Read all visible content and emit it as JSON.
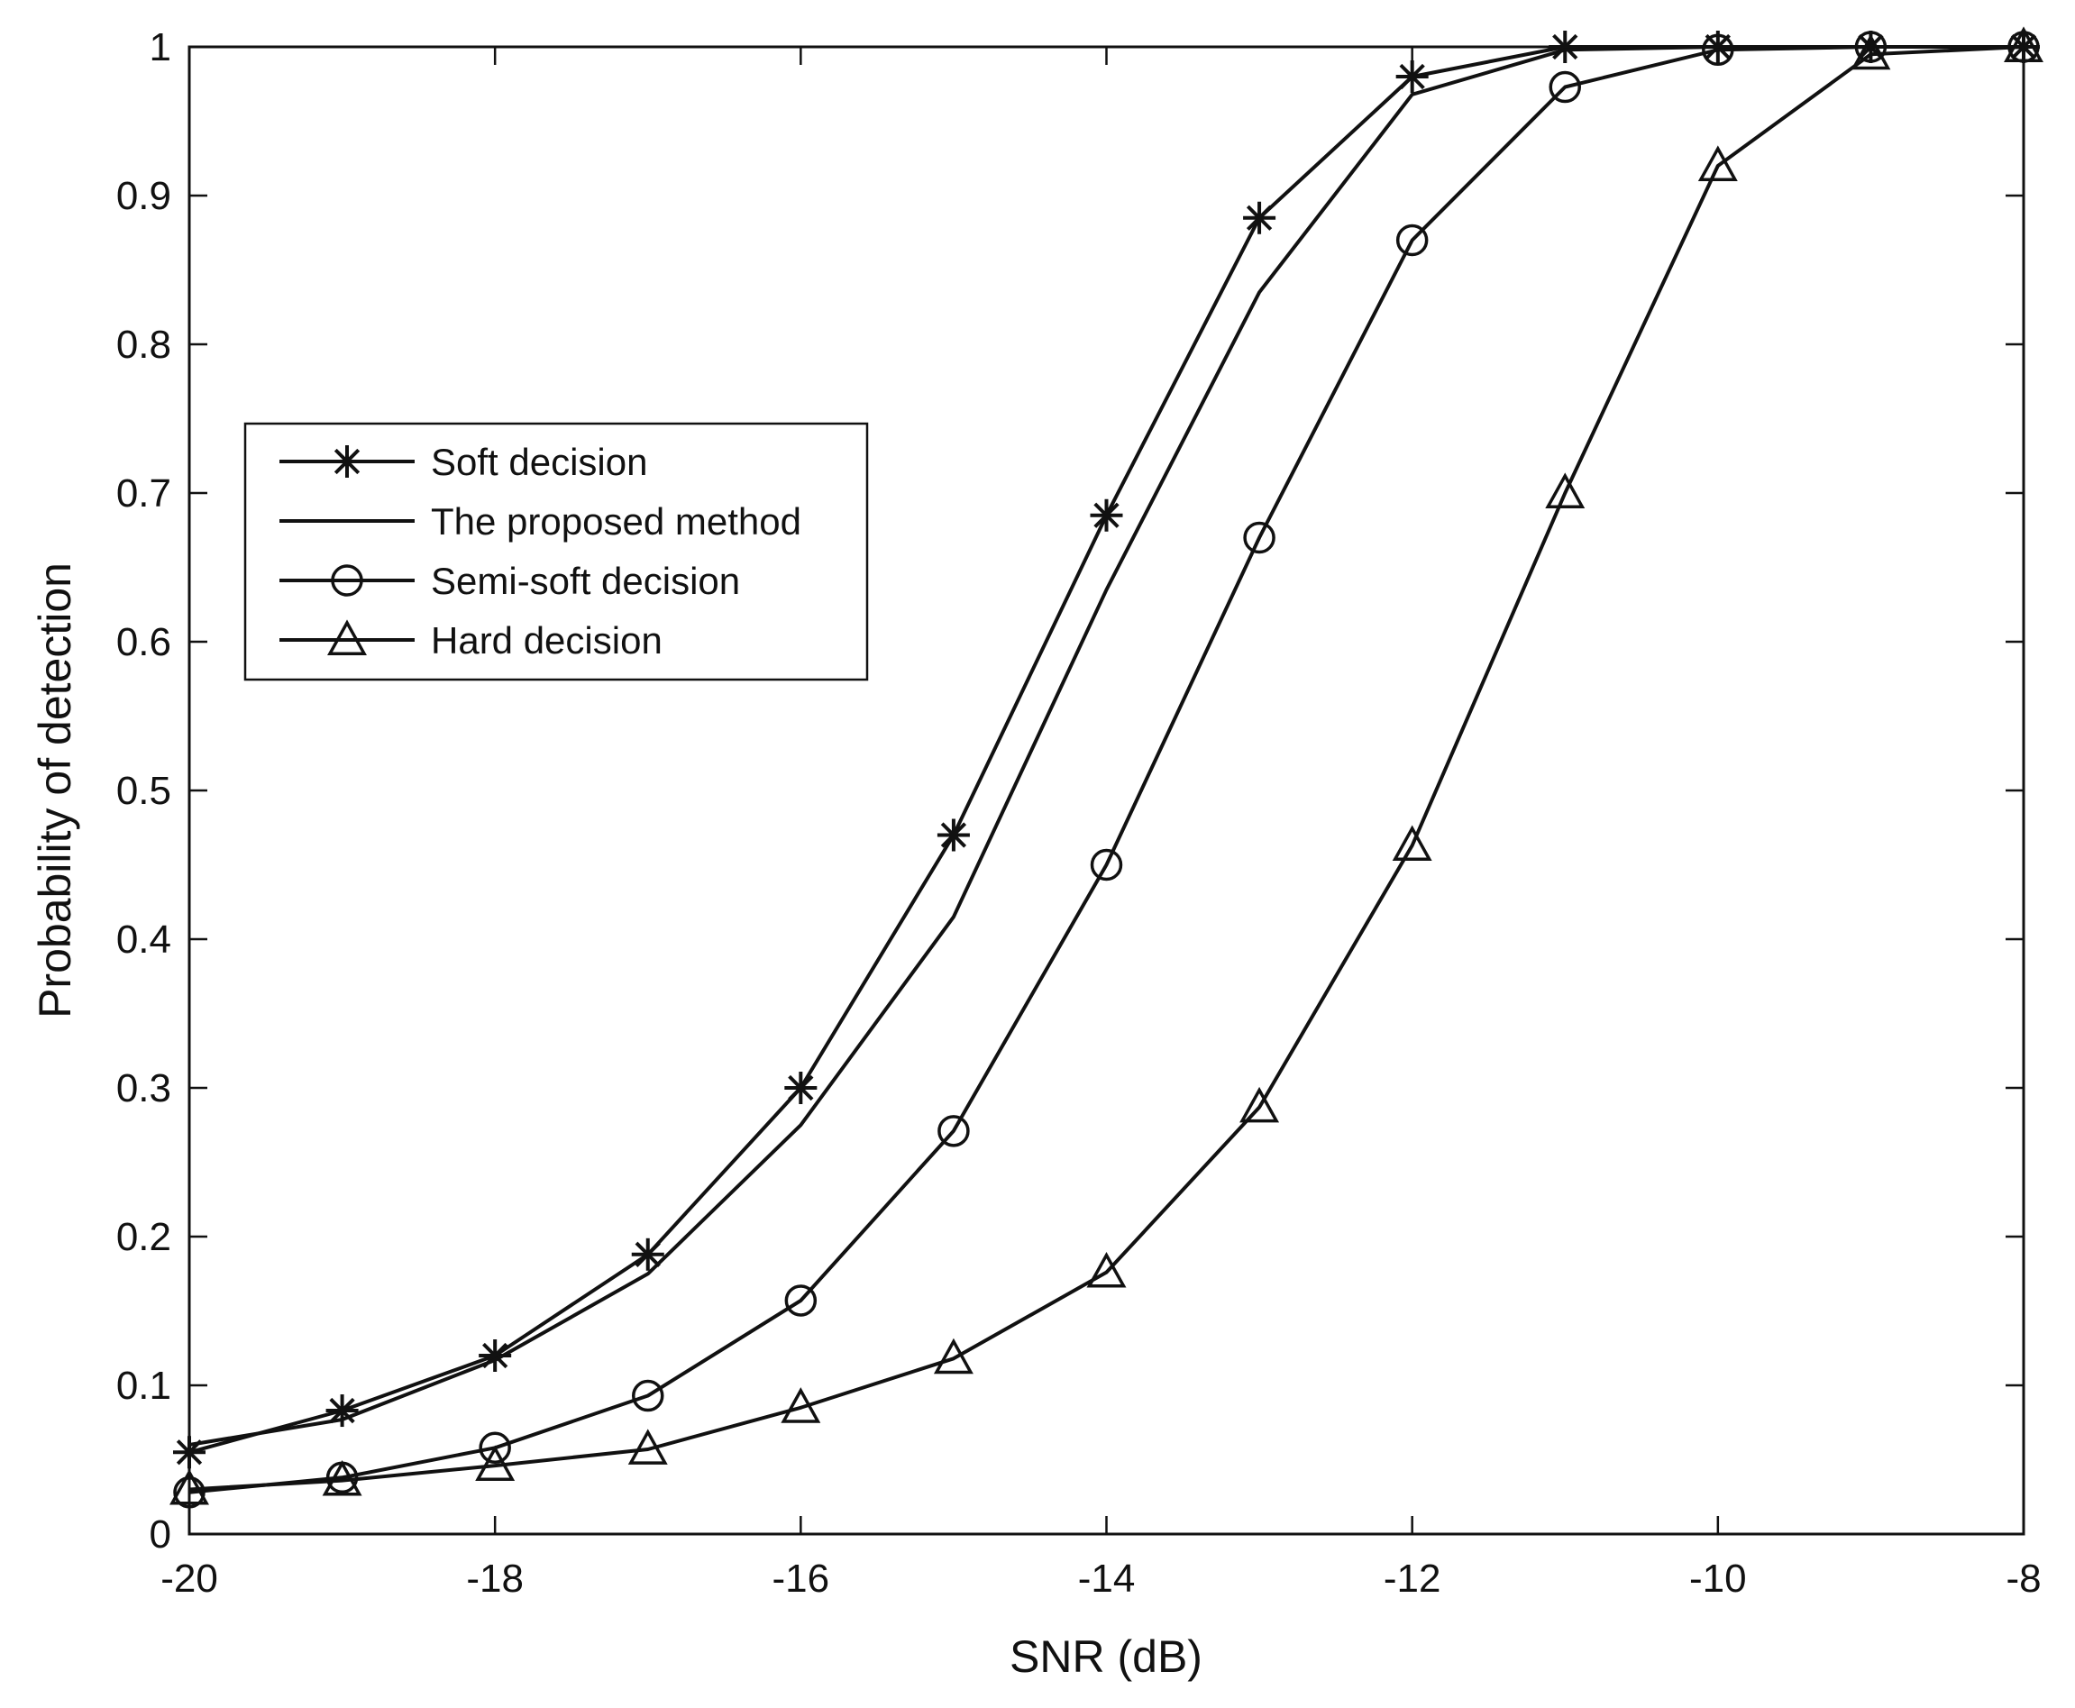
{
  "chart_data": {
    "type": "line",
    "title": "",
    "xlabel": "SNR (dB)",
    "ylabel": "Probability of detection",
    "xlim": [
      -20,
      -8
    ],
    "ylim": [
      0,
      1
    ],
    "xticks": [
      -20,
      -18,
      -16,
      -14,
      -12,
      -10,
      -8
    ],
    "xtick_labels": [
      "-20",
      "-18",
      "-16",
      "-14",
      "-12",
      "-10",
      "-8"
    ],
    "yticks": [
      0,
      0.1,
      0.2,
      0.3,
      0.4,
      0.5,
      0.6,
      0.7,
      0.8,
      0.9,
      1
    ],
    "ytick_labels": [
      "0",
      "0.1",
      "0.2",
      "0.3",
      "0.4",
      "0.5",
      "0.6",
      "0.7",
      "0.8",
      "0.9",
      "1"
    ],
    "grid": false,
    "legend_position": "left",
    "x": [
      -20,
      -19,
      -18,
      -17,
      -16,
      -15,
      -14,
      -13,
      -12,
      -11,
      -10,
      -9,
      -8
    ],
    "series": [
      {
        "name": "Soft decision",
        "marker": "asterisk",
        "values": [
          0.055,
          0.083,
          0.12,
          0.188,
          0.3,
          0.47,
          0.685,
          0.885,
          0.98,
          1.0,
          1.0,
          1.0,
          1.0
        ]
      },
      {
        "name": "The proposed method",
        "marker": "none",
        "values": [
          0.06,
          0.077,
          0.117,
          0.175,
          0.275,
          0.415,
          0.635,
          0.835,
          0.968,
          0.998,
          1.0,
          1.0,
          1.0
        ]
      },
      {
        "name": "Semi-soft decision",
        "marker": "circle",
        "values": [
          0.028,
          0.038,
          0.058,
          0.093,
          0.157,
          0.271,
          0.45,
          0.67,
          0.87,
          0.973,
          0.998,
          1.0,
          1.0
        ]
      },
      {
        "name": "Hard decision",
        "marker": "triangle",
        "values": [
          0.03,
          0.036,
          0.046,
          0.057,
          0.085,
          0.118,
          0.176,
          0.287,
          0.463,
          0.7,
          0.92,
          0.995,
          1.0
        ]
      }
    ],
    "colors": {
      "line": "#111111",
      "axes": "#111111",
      "background": "#ffffff"
    }
  }
}
